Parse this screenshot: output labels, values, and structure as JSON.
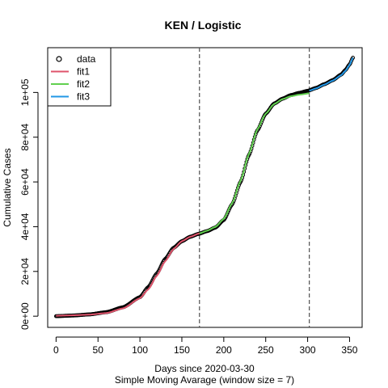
{
  "chart_data": {
    "type": "line",
    "title": "KEN / Logistic",
    "xlabel": "Days since 2020-03-30",
    "xlabel2": "Simple Moving Avarage (window size = 7)",
    "ylabel": "Cumulative Cases",
    "xlim": [
      -10,
      365
    ],
    "ylim": [
      -5000,
      120000
    ],
    "xticks": [
      0,
      50,
      100,
      150,
      200,
      250,
      300,
      350
    ],
    "yticks": [
      0,
      20000,
      40000,
      60000,
      80000,
      100000
    ],
    "ytick_labels": [
      "0e+00",
      "2e+04",
      "4e+04",
      "6e+04",
      "8e+04",
      "1e+05"
    ],
    "vlines": [
      171,
      302
    ],
    "grid": false,
    "legend_position": "top-left",
    "legend": [
      {
        "label": "data",
        "kind": "point",
        "color": "#000000"
      },
      {
        "label": "fit1",
        "kind": "line",
        "color": "#DF536B"
      },
      {
        "label": "fit2",
        "kind": "line",
        "color": "#61D04F"
      },
      {
        "label": "fit3",
        "kind": "line",
        "color": "#2297E6"
      }
    ],
    "series": [
      {
        "name": "data",
        "kind": "points",
        "color": "#000000",
        "x": [
          0,
          20,
          40,
          60,
          80,
          100,
          110,
          120,
          130,
          140,
          150,
          160,
          170,
          180,
          190,
          200,
          210,
          220,
          230,
          240,
          250,
          260,
          270,
          280,
          290,
          300,
          310,
          320,
          330,
          340,
          345,
          350,
          354
        ],
        "y": [
          0,
          300,
          800,
          1800,
          4000,
          8500,
          13000,
          19000,
          25500,
          30500,
          33500,
          35500,
          36800,
          38000,
          39600,
          43000,
          50000,
          60000,
          72000,
          83000,
          90500,
          95000,
          97200,
          98800,
          99800,
          100700,
          102000,
          103700,
          105500,
          108000,
          110000,
          112500,
          115500
        ]
      },
      {
        "name": "fit1",
        "kind": "line",
        "color": "#DF536B",
        "x": [
          0,
          20,
          40,
          60,
          80,
          100,
          110,
          120,
          130,
          140,
          150,
          160,
          171
        ],
        "y": [
          200,
          400,
          700,
          1400,
          3500,
          8000,
          12000,
          18000,
          24500,
          30000,
          33500,
          35500,
          37000
        ]
      },
      {
        "name": "fit2",
        "kind": "line",
        "color": "#61D04F",
        "x": [
          171,
          180,
          190,
          200,
          210,
          220,
          230,
          240,
          250,
          260,
          270,
          280,
          290,
          302
        ],
        "y": [
          37000,
          38200,
          39900,
          43500,
          50500,
          60500,
          72500,
          83500,
          90500,
          94800,
          97000,
          98300,
          99000,
          99600
        ]
      },
      {
        "name": "fit3",
        "kind": "line",
        "color": "#2297E6",
        "x": [
          302,
          310,
          320,
          330,
          340,
          345,
          350,
          354
        ],
        "y": [
          100800,
          101800,
          103500,
          105300,
          107700,
          109600,
          112200,
          115500
        ]
      }
    ]
  }
}
